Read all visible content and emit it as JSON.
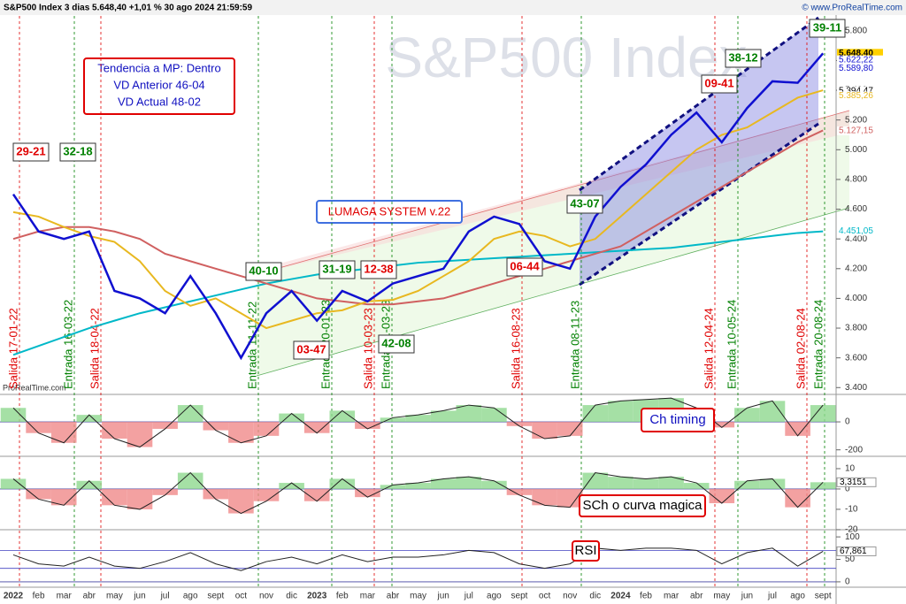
{
  "header": {
    "title": "S&P500 Index 3 dias 5.648,40 +1,01 % 30 ago 2024 21:59:59",
    "site": "© www.ProRealTime.com",
    "footer": "ProRealTime.com"
  },
  "chart_data": [
    {
      "type": "line",
      "watermark": "S&P500 Index",
      "info_box": [
        "Tendencia a MP: Dentro",
        "VD Anterior 46-04",
        "VD Actual 48-02"
      ],
      "system_label": "LUMAGA SYSTEM v.22",
      "signals": [
        {
          "text": "29-21",
          "color": "#e00000"
        },
        {
          "text": "32-18",
          "color": "#008000"
        },
        {
          "text": "40-10",
          "color": "#008000"
        },
        {
          "text": "31-19",
          "color": "#008000"
        },
        {
          "text": "12-38",
          "color": "#e00000"
        },
        {
          "text": "03-47",
          "color": "#e00000"
        },
        {
          "text": "42-08",
          "color": "#008000"
        },
        {
          "text": "06-44",
          "color": "#e00000"
        },
        {
          "text": "43-07",
          "color": "#008000"
        },
        {
          "text": "09-41",
          "color": "#e00000"
        },
        {
          "text": "38-12",
          "color": "#008000"
        },
        {
          "text": "39-11",
          "color": "#008000"
        }
      ],
      "annotations": [
        {
          "text": "Salida 17-01-22",
          "color": "#e00000"
        },
        {
          "text": "Entrada 16-03-22",
          "color": "#008000"
        },
        {
          "text": "Salida 18-04-22",
          "color": "#e00000"
        },
        {
          "text": "Entrada 11-11-22",
          "color": "#008000"
        },
        {
          "text": "Entrada 20-01-23",
          "color": "#008000"
        },
        {
          "text": "Salida 10-03-23",
          "color": "#e00000"
        },
        {
          "text": "Entrada 31-03-23",
          "color": "#008000"
        },
        {
          "text": "Salida 16-08-23",
          "color": "#e00000"
        },
        {
          "text": "Entrada 08-11-23",
          "color": "#008000"
        },
        {
          "text": "Salida 12-04-24",
          "color": "#e00000"
        },
        {
          "text": "Entrada 10-05-24",
          "color": "#008000"
        },
        {
          "text": "Salida 02-08-24",
          "color": "#e00000"
        },
        {
          "text": "Entrada 20-08-24",
          "color": "#008000"
        }
      ],
      "categories": [
        "2022",
        "feb",
        "mar",
        "abr",
        "may",
        "jun",
        "jul",
        "ago",
        "sept",
        "oct",
        "nov",
        "dic",
        "2023",
        "feb",
        "mar",
        "abr",
        "may",
        "jun",
        "jul",
        "ago",
        "sept",
        "oct",
        "nov",
        "dic",
        "2024",
        "feb",
        "mar",
        "abr",
        "may",
        "jun",
        "jul",
        "ago",
        "sept"
      ],
      "series": [
        {
          "color": "#00b8c8",
          "values": [
            3620,
            3680,
            3740,
            3800,
            3850,
            3900,
            3940,
            3980,
            4020,
            4060,
            4100,
            4130,
            4160,
            4180,
            4200,
            4220,
            4240,
            4250,
            4260,
            4270,
            4280,
            4290,
            4300,
            4310,
            4320,
            4330,
            4340,
            4360,
            4380,
            4400,
            4420,
            4440,
            4451
          ]
        },
        {
          "color": "#d06060",
          "values": [
            4400,
            4450,
            4480,
            4480,
            4450,
            4400,
            4300,
            4250,
            4200,
            4150,
            4100,
            4050,
            4000,
            3980,
            3960,
            3960,
            3980,
            4000,
            4050,
            4100,
            4150,
            4200,
            4250,
            4300,
            4350,
            4450,
            4550,
            4650,
            4750,
            4850,
            4950,
            5050,
            5130
          ]
        },
        {
          "color": "#e8b820",
          "values": [
            4580,
            4550,
            4480,
            4420,
            4380,
            4250,
            4050,
            3950,
            4000,
            3900,
            3800,
            3850,
            3900,
            3920,
            3980,
            3990,
            4050,
            4150,
            4250,
            4400,
            4450,
            4420,
            4350,
            4400,
            4550,
            4700,
            4850,
            5000,
            5100,
            5150,
            5250,
            5350,
            5400
          ]
        },
        {
          "color": "#1010d0",
          "values": [
            4700,
            4450,
            4400,
            4450,
            4050,
            4000,
            3900,
            4150,
            3900,
            3600,
            3900,
            4050,
            3850,
            4050,
            3980,
            4100,
            4150,
            4200,
            4450,
            4550,
            4500,
            4250,
            4200,
            4550,
            4750,
            4900,
            5100,
            5250,
            5050,
            5280,
            5460,
            5450,
            5648
          ]
        }
      ],
      "price_labels": [
        {
          "value": 5648.4,
          "label": "5.648,40",
          "color": "#000000"
        },
        {
          "value": 5622.22,
          "label": "5.622,22",
          "color": "#1010d0"
        },
        {
          "value": 5589.8,
          "label": "5.589,80",
          "color": "#1010d0"
        },
        {
          "value": 5394.47,
          "label": "5.394,47",
          "color": "#000000"
        },
        {
          "value": 5385.26,
          "label": "5.385,26",
          "color": "#e8b820"
        },
        {
          "value": 5127.15,
          "label": "5.127,15",
          "color": "#d06060"
        },
        {
          "value": 4451.05,
          "label": "4.451,05",
          "color": "#00b8c8"
        }
      ],
      "ylim": [
        3360,
        5900
      ],
      "yticks": [
        {
          "value": 3400,
          "label": "3.400"
        },
        {
          "value": 3600,
          "label": "3.600"
        },
        {
          "value": 3800,
          "label": "3.800"
        },
        {
          "value": 4000,
          "label": "4.000"
        },
        {
          "value": 4200,
          "label": "4.200"
        },
        {
          "value": 4400,
          "label": "4.400"
        },
        {
          "value": 4600,
          "label": "4.600"
        },
        {
          "value": 4800,
          "label": "4.800"
        },
        {
          "value": 5000,
          "label": "5.000"
        },
        {
          "value": 5200,
          "label": "5.200"
        },
        {
          "value": 5400,
          "label": "5.400"
        },
        {
          "value": 5600,
          "label": "5.600"
        },
        {
          "value": 5800,
          "label": "5.800"
        }
      ]
    },
    {
      "type": "area",
      "title": "Ch timing",
      "values": [
        100,
        -80,
        -150,
        50,
        -120,
        -180,
        -50,
        120,
        -60,
        -150,
        -100,
        60,
        -80,
        80,
        -50,
        30,
        50,
        80,
        120,
        100,
        -30,
        -120,
        -100,
        120,
        150,
        160,
        170,
        100,
        -40,
        100,
        150,
        -100,
        120
      ],
      "ylim": [
        -240,
        190
      ],
      "yticks": [
        0,
        -200
      ]
    },
    {
      "type": "area",
      "title": "SCh o curva magica",
      "values": [
        5,
        -5,
        -8,
        4,
        -8,
        -10,
        -3,
        8,
        -5,
        -12,
        -6,
        3,
        -6,
        5,
        -4,
        2,
        3,
        5,
        6,
        4,
        -3,
        -8,
        -9,
        8,
        6,
        5,
        6,
        3,
        -7,
        4,
        5,
        -9,
        3.3151
      ],
      "value_labels": {
        "32": "3,3151"
      },
      "ylim": [
        -19.6,
        15.2
      ],
      "yticks": [
        10,
        0,
        -10,
        -20
      ]
    },
    {
      "type": "line",
      "title": "RSI",
      "values": [
        60,
        40,
        35,
        55,
        35,
        30,
        45,
        65,
        40,
        25,
        45,
        55,
        40,
        60,
        45,
        55,
        55,
        60,
        70,
        65,
        40,
        30,
        40,
        75,
        70,
        75,
        75,
        70,
        40,
        65,
        75,
        35,
        67.861
      ],
      "value_labels": {
        "32": "67,861"
      },
      "ylim": [
        -10,
        114
      ],
      "yticks": [
        100,
        50,
        0
      ]
    }
  ]
}
